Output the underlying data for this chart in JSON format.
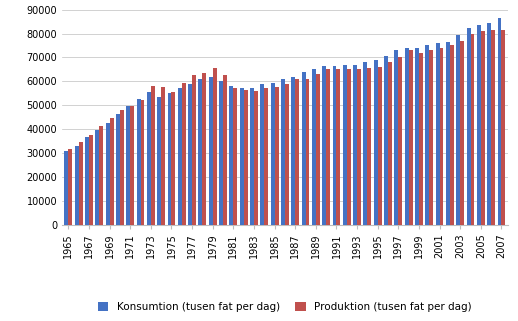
{
  "years": [
    1965,
    1966,
    1967,
    1968,
    1969,
    1970,
    1971,
    1972,
    1973,
    1974,
    1975,
    1976,
    1977,
    1978,
    1979,
    1980,
    1981,
    1982,
    1983,
    1984,
    1985,
    1986,
    1987,
    1988,
    1989,
    1990,
    1991,
    1992,
    1993,
    1994,
    1995,
    1996,
    1997,
    1998,
    1999,
    2000,
    2001,
    2002,
    2003,
    2004,
    2005,
    2006,
    2007
  ],
  "konsumtion": [
    31000,
    33000,
    36500,
    39500,
    42500,
    46500,
    49500,
    52500,
    55500,
    53500,
    55000,
    57000,
    59000,
    61000,
    62000,
    60000,
    58000,
    57000,
    57000,
    59000,
    59500,
    61000,
    62000,
    64000,
    65000,
    66500,
    66500,
    67000,
    67000,
    68000,
    69000,
    70500,
    73000,
    74000,
    74000,
    75000,
    76000,
    76500,
    79500,
    82500,
    83500,
    84500,
    86500
  ],
  "produktion": [
    31500,
    34500,
    37500,
    41500,
    44500,
    48000,
    49500,
    52000,
    58000,
    57500,
    55500,
    59500,
    62500,
    63500,
    65500,
    62500,
    57000,
    56500,
    56000,
    57000,
    57500,
    59000,
    61000,
    61000,
    63000,
    65000,
    65000,
    65000,
    65000,
    65500,
    66000,
    68000,
    70000,
    73000,
    72000,
    73000,
    74000,
    75000,
    77000,
    80000,
    81000,
    81500,
    81500
  ],
  "bar_color_konsumtion": "#4472C4",
  "bar_color_produktion": "#C0504D",
  "legend_labels": [
    "Konsumtion (tusen fat per dag)",
    "Produktion (tusen fat per dag)"
  ],
  "ylim": [
    0,
    90000
  ],
  "yticks": [
    0,
    10000,
    20000,
    30000,
    40000,
    50000,
    60000,
    70000,
    80000,
    90000
  ],
  "ytick_labels": [
    "0",
    "10000",
    "20000",
    "30000",
    "40000",
    "50000",
    "60000",
    "70000",
    "80000",
    "90000"
  ],
  "background_color": "#FFFFFF",
  "grid_color": "#BFBFBF",
  "tick_label_years": [
    1965,
    1967,
    1969,
    1971,
    1973,
    1975,
    1977,
    1979,
    1981,
    1983,
    1985,
    1987,
    1989,
    1991,
    1993,
    1995,
    1997,
    1999,
    2001,
    2003,
    2005,
    2007
  ],
  "bar_width": 0.38
}
